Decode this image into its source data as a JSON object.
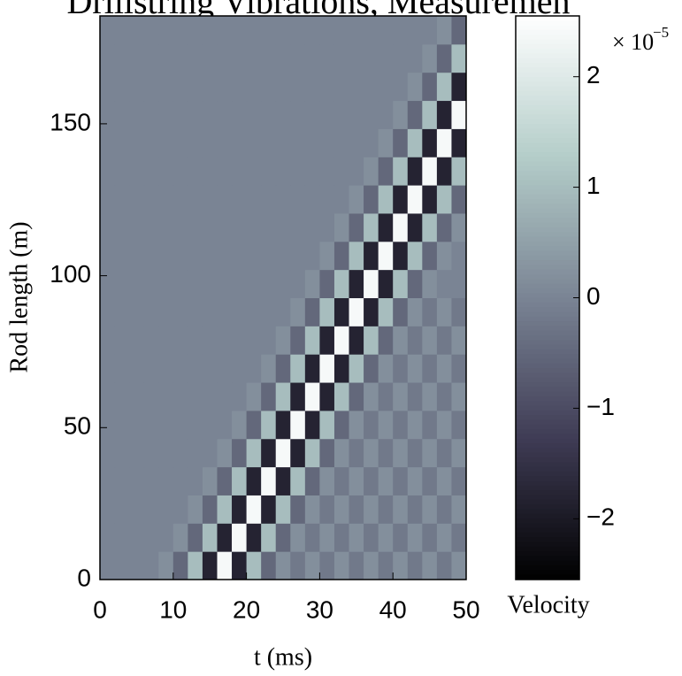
{
  "chart_data": {
    "type": "heatmap",
    "title": "Drillstring Vibrations, Measuremen",
    "x_label": "t (ms)",
    "y_label": "Rod length (m)",
    "colorbar_label": "Velocity",
    "colorbar_multiplier": {
      "base": "× 10",
      "exponent": "−5"
    },
    "xlim": [
      0,
      50
    ],
    "xticks": [
      0,
      10,
      20,
      30,
      40,
      50
    ],
    "ylim": [
      0,
      185.5
    ],
    "yticks": [
      0,
      50,
      100,
      150
    ],
    "clim": [
      -2.55,
      2.55
    ],
    "cticks": [
      {
        "value": -2,
        "label": "−2"
      },
      {
        "value": -1,
        "label": "−1"
      },
      0,
      1,
      2
    ],
    "colors": [
      "#000000",
      "#3f3c55",
      "#7a8494",
      "#b4cdc9",
      "#ffffff"
    ],
    "xbins": [
      0,
      2,
      4,
      6,
      8,
      10,
      12,
      14,
      16,
      18,
      20,
      22,
      24,
      26,
      28,
      30,
      32,
      34,
      36,
      38,
      40,
      42,
      44,
      46,
      48,
      50
    ],
    "ybins": [
      0,
      9.275,
      18.55,
      27.825,
      37.1,
      46.375,
      55.65,
      64.925,
      74.2,
      83.475,
      92.75,
      102.025,
      111.3,
      120.575,
      129.85,
      139.125,
      148.4,
      157.675,
      166.95,
      176.225,
      185.5
    ],
    "z": [
      [
        0,
        0,
        0,
        0,
        0.2,
        -0.5,
        1,
        -1.8,
        2.4,
        -1.8,
        1,
        -0.5,
        0.2,
        -0.2,
        0.2,
        -0.2,
        0.2,
        -0.2,
        0.2,
        -0.2,
        0.2,
        -0.2,
        0.2,
        -0.2,
        0.2
      ],
      [
        0,
        0,
        0,
        0,
        0,
        0.2,
        -0.5,
        1,
        -1.8,
        2.4,
        -1.8,
        1,
        -0.5,
        0.2,
        -0.2,
        0.2,
        -0.2,
        0.2,
        -0.2,
        0.2,
        -0.2,
        0.2,
        -0.2,
        0.2,
        -0.2
      ],
      [
        0,
        0,
        0,
        0,
        0,
        0,
        0.2,
        -0.5,
        1,
        -1.8,
        2.4,
        -1.8,
        1,
        -0.5,
        0.2,
        -0.2,
        0.2,
        -0.2,
        0.2,
        -0.2,
        0.2,
        -0.2,
        0.2,
        -0.2,
        0.2
      ],
      [
        0,
        0,
        0,
        0,
        0,
        0,
        0,
        0.2,
        -0.5,
        1,
        -1.8,
        2.4,
        -1.8,
        1,
        -0.5,
        0.2,
        -0.2,
        0.2,
        -0.2,
        0.2,
        -0.2,
        0.2,
        -0.2,
        0.2,
        -0.2
      ],
      [
        0,
        0,
        0,
        0,
        0,
        0,
        0,
        0,
        0.2,
        -0.5,
        1,
        -1.8,
        2.4,
        -1.8,
        1,
        -0.5,
        0.2,
        -0.2,
        0.2,
        -0.2,
        0.2,
        -0.2,
        0.2,
        -0.2,
        0.2
      ],
      [
        0,
        0,
        0,
        0,
        0,
        0,
        0,
        0,
        0,
        0.2,
        -0.5,
        1,
        -1.8,
        2.4,
        -1.8,
        1,
        -0.5,
        0.2,
        -0.2,
        0.2,
        -0.2,
        0.2,
        -0.2,
        0.2,
        -0.2
      ],
      [
        0,
        0,
        0,
        0,
        0,
        0,
        0,
        0,
        0,
        0,
        0.2,
        -0.5,
        1,
        -1.8,
        2.4,
        -1.8,
        1,
        -0.5,
        0.2,
        -0.2,
        0.2,
        -0.2,
        0.2,
        -0.2,
        0.2
      ],
      [
        0,
        0,
        0,
        0,
        0,
        0,
        0,
        0,
        0,
        0,
        0,
        0.2,
        -0.5,
        1,
        -1.8,
        2.4,
        -1.8,
        1,
        -0.5,
        0.2,
        -0.2,
        0.2,
        -0.2,
        0.2,
        -0.2
      ],
      [
        0,
        0,
        0,
        0,
        0,
        0,
        0,
        0,
        0,
        0,
        0,
        0,
        0.2,
        -0.5,
        1,
        -1.8,
        2.4,
        -1.8,
        1,
        -0.5,
        0.2,
        -0.2,
        0.2,
        -0.2,
        0.2
      ],
      [
        0,
        0,
        0,
        0,
        0,
        0,
        0,
        0,
        0,
        0,
        0,
        0,
        0,
        0.2,
        -0.5,
        1,
        -1.8,
        2.4,
        -1.8,
        1,
        -0.5,
        0.2,
        -0.2,
        0.2,
        -0.2
      ],
      [
        0,
        0,
        0,
        0,
        0,
        0,
        0,
        0,
        0,
        0,
        0,
        0,
        0,
        0,
        0.2,
        -0.5,
        1,
        -1.8,
        2.4,
        -1.8,
        1,
        -0.5,
        0.2,
        0,
        0
      ],
      [
        0,
        0,
        0,
        0,
        0,
        0,
        0,
        0,
        0,
        0,
        0,
        0,
        0,
        0,
        0,
        0.2,
        -0.5,
        1,
        -1.8,
        2.4,
        -1.8,
        1,
        -0.5,
        0.2,
        0
      ],
      [
        0,
        0,
        0,
        0,
        0,
        0,
        0,
        0,
        0,
        0,
        0,
        0,
        0,
        0,
        0,
        0,
        0.2,
        -0.5,
        1,
        -1.8,
        2.4,
        -1.8,
        1,
        -0.5,
        0.2
      ],
      [
        0,
        0,
        0,
        0,
        0,
        0,
        0,
        0,
        0,
        0,
        0,
        0,
        0,
        0,
        0,
        0,
        0,
        0.2,
        -0.5,
        1,
        -1.8,
        2.4,
        -1.8,
        1,
        -0.5
      ],
      [
        0,
        0,
        0,
        0,
        0,
        0,
        0,
        0,
        0,
        0,
        0,
        0,
        0,
        0,
        0,
        0,
        0,
        0,
        0.2,
        -0.5,
        1,
        -1.8,
        2.4,
        -1.8,
        1
      ],
      [
        0,
        0,
        0,
        0,
        0,
        0,
        0,
        0,
        0,
        0,
        0,
        0,
        0,
        0,
        0,
        0,
        0,
        0,
        0,
        0.2,
        -0.5,
        1,
        -1.8,
        2.4,
        -1.8
      ],
      [
        0,
        0,
        0,
        0,
        0,
        0,
        0,
        0,
        0,
        0,
        0,
        0,
        0,
        0,
        0,
        0,
        0,
        0,
        0,
        0,
        0.2,
        -0.5,
        1,
        -1.8,
        2.4
      ],
      [
        0,
        0,
        0,
        0,
        0,
        0,
        0,
        0,
        0,
        0,
        0,
        0,
        0,
        0,
        0,
        0,
        0,
        0,
        0,
        0,
        0,
        0.2,
        -0.5,
        1,
        -1.8
      ],
      [
        0,
        0,
        0,
        0,
        0,
        0,
        0,
        0,
        0,
        0,
        0,
        0,
        0,
        0,
        0,
        0,
        0,
        0,
        0,
        0,
        0,
        0,
        0.2,
        -0.5,
        1
      ],
      [
        0,
        0,
        0,
        0,
        0,
        0,
        0,
        0,
        0,
        0,
        0,
        0,
        0,
        0,
        0,
        0,
        0,
        0,
        0,
        0,
        0,
        0,
        0,
        0.2,
        -0.5
      ]
    ]
  }
}
